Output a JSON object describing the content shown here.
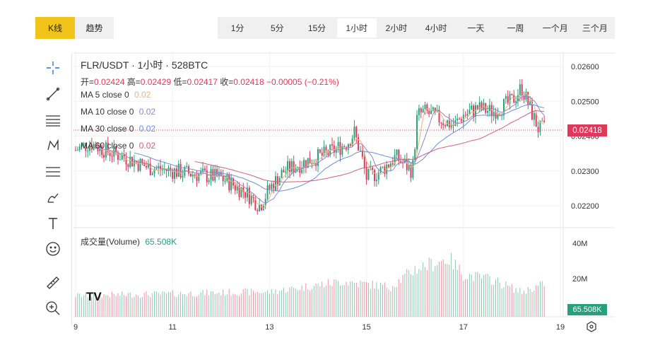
{
  "top": {
    "kline": "K线",
    "trend": "趋势",
    "intervals": [
      "1分",
      "5分",
      "15分",
      "1小时",
      "2小时",
      "4小时",
      "一天",
      "一周",
      "一个月",
      "三个月"
    ],
    "selected": "1小时"
  },
  "legend": {
    "title": "FLR/USDT · 1小时 · 528BTC",
    "open_label": "开=",
    "open": "0.02424",
    "high_label": "高=",
    "high": "0.02429",
    "low_label": "低=",
    "low": "0.02417",
    "close_label": "收=",
    "close": "0.02418",
    "change": "−0.00005 (−0.21%)",
    "ma": [
      {
        "label": "MA 5 close 0",
        "value": "0.02",
        "color": "#f0b27a"
      },
      {
        "label": "MA 10 close 0",
        "value": "0.02",
        "color": "#8e86c9"
      },
      {
        "label": "MA 30 close 0",
        "value": "0.02",
        "color": "#6a8fd8"
      },
      {
        "label": "MA 60 close 0",
        "value": "0.02",
        "color": "#d0607f"
      }
    ],
    "volume_label": "成交量(Volume)",
    "volume_value": "65.508K"
  },
  "price_tag": "0.02418",
  "volume_tag": "65.508K",
  "colors": {
    "up": "#26a17b",
    "down": "#e0385a",
    "accent": "#f0c419"
  },
  "chart_data": {
    "type": "candlestick",
    "price_ticks": [
      "0.02600",
      "0.02500",
      "0.02400",
      "0.02300",
      "0.02200"
    ],
    "ylim": [
      0.0219,
      0.0262
    ],
    "volume_ticks": [
      "40M",
      "20M"
    ],
    "x_ticks": [
      "9",
      "11",
      "13",
      "15",
      "17",
      "19"
    ],
    "price_anchors": [
      [
        9.0,
        0.0236
      ],
      [
        9.3,
        0.0238
      ],
      [
        9.6,
        0.0236
      ],
      [
        10.0,
        0.0234
      ],
      [
        10.5,
        0.0231
      ],
      [
        11.0,
        0.023
      ],
      [
        11.5,
        0.0229
      ],
      [
        12.0,
        0.0228
      ],
      [
        12.5,
        0.0224
      ],
      [
        12.8,
        0.022
      ],
      [
        13.0,
        0.0225
      ],
      [
        13.3,
        0.023
      ],
      [
        13.8,
        0.0233
      ],
      [
        14.2,
        0.0235
      ],
      [
        14.6,
        0.0238
      ],
      [
        14.75,
        0.0241
      ],
      [
        14.9,
        0.0234
      ],
      [
        15.0,
        0.0228
      ],
      [
        15.3,
        0.023
      ],
      [
        15.6,
        0.0234
      ],
      [
        15.95,
        0.023
      ],
      [
        16.05,
        0.0246
      ],
      [
        16.2,
        0.0247
      ],
      [
        16.5,
        0.0245
      ],
      [
        16.8,
        0.0243
      ],
      [
        17.0,
        0.0246
      ],
      [
        17.3,
        0.0248
      ],
      [
        17.6,
        0.0247
      ],
      [
        18.0,
        0.025
      ],
      [
        18.2,
        0.0254
      ],
      [
        18.4,
        0.0247
      ],
      [
        18.55,
        0.0242
      ],
      [
        18.7,
        0.0242
      ]
    ],
    "volume_anchors": [
      [
        9.0,
        12
      ],
      [
        11.0,
        13
      ],
      [
        12.5,
        14
      ],
      [
        13.0,
        14
      ],
      [
        14.5,
        20
      ],
      [
        15.5,
        17
      ],
      [
        16.0,
        27
      ],
      [
        16.7,
        33
      ],
      [
        17.0,
        24
      ],
      [
        17.6,
        21
      ],
      [
        18.2,
        14
      ],
      [
        18.7,
        19
      ]
    ]
  }
}
